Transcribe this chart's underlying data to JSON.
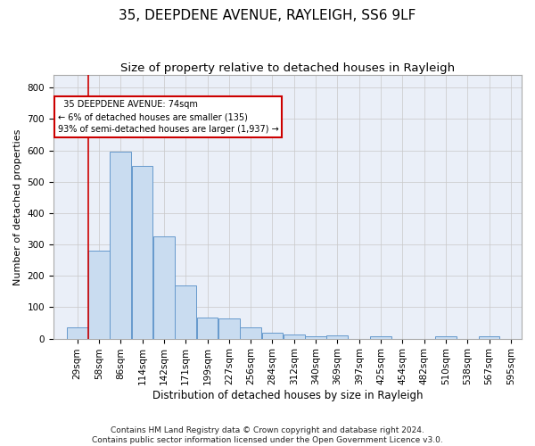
{
  "title1": "35, DEEPDENE AVENUE, RAYLEIGH, SS6 9LF",
  "title2": "Size of property relative to detached houses in Rayleigh",
  "xlabel": "Distribution of detached houses by size in Rayleigh",
  "ylabel": "Number of detached properties",
  "bar_values": [
    35,
    280,
    595,
    550,
    325,
    170,
    68,
    65,
    35,
    20,
    12,
    8,
    10,
    0,
    8,
    0,
    0,
    8,
    0,
    8
  ],
  "x_labels": [
    "29sqm",
    "58sqm",
    "86sqm",
    "114sqm",
    "142sqm",
    "171sqm",
    "199sqm",
    "227sqm",
    "256sqm",
    "284sqm",
    "312sqm",
    "340sqm",
    "369sqm",
    "397sqm",
    "425sqm",
    "454sqm",
    "482sqm",
    "510sqm",
    "538sqm",
    "567sqm",
    "595sqm"
  ],
  "bar_color": "#c9dcf0",
  "bar_edge_color": "#6699cc",
  "annotation_text": "  35 DEEPDENE AVENUE: 74sqm\n← 6% of detached houses are smaller (135)\n93% of semi-detached houses are larger (1,937) →",
  "annotation_box_color": "#ffffff",
  "annotation_box_edge": "#cc0000",
  "vline_color": "#cc0000",
  "ylim": [
    0,
    840
  ],
  "yticks": [
    0,
    100,
    200,
    300,
    400,
    500,
    600,
    700,
    800
  ],
  "grid_color": "#c8c8c8",
  "background_color": "#eaeff8",
  "footer": "Contains HM Land Registry data © Crown copyright and database right 2024.\nContains public sector information licensed under the Open Government Licence v3.0.",
  "title1_fontsize": 11,
  "title2_fontsize": 9.5,
  "xlabel_fontsize": 8.5,
  "ylabel_fontsize": 8,
  "footer_fontsize": 6.5,
  "tick_fontsize": 7.5,
  "annot_fontsize": 7
}
